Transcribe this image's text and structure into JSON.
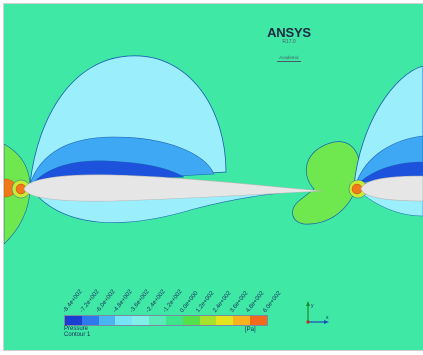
{
  "brand": {
    "name": "ANSYS",
    "version": "R17.0",
    "edition": "Academic"
  },
  "legend": {
    "variable_lines": [
      "Pressure",
      "Contour 1"
    ],
    "unit": "[Pa]",
    "tick_labels": [
      "-8.4e+002",
      "-7.2e+002",
      "-6.0e+002",
      "-4.8e+002",
      "-3.6e+002",
      "-2.4e+002",
      "-1.2e+002",
      "0.0e+000",
      "1.2e+002",
      "2.4e+002",
      "3.6e+002",
      "4.8e+002",
      "6.0e+002"
    ],
    "colors": [
      "#1a3ecf",
      "#2f79ef",
      "#49b6f2",
      "#74e4f6",
      "#7ef0e8",
      "#59ecb9",
      "#3de58d",
      "#54e04b",
      "#a4e22b",
      "#e3e41c",
      "#f7b21d",
      "#f26a1c"
    ]
  },
  "axes": {
    "x_label": "x",
    "y_label": "y"
  },
  "field_colors": {
    "background": "#3fe8a4",
    "low_outer": "#9beefc",
    "low_mid": "#3ea8f4",
    "low_inner": "#1d53dc",
    "high_outer": "#6ee84e",
    "high_mid": "#c9ea35",
    "stagnation": "#f07a1a",
    "airfoil": "#e6e6e6",
    "line": "#1a5fb0"
  }
}
